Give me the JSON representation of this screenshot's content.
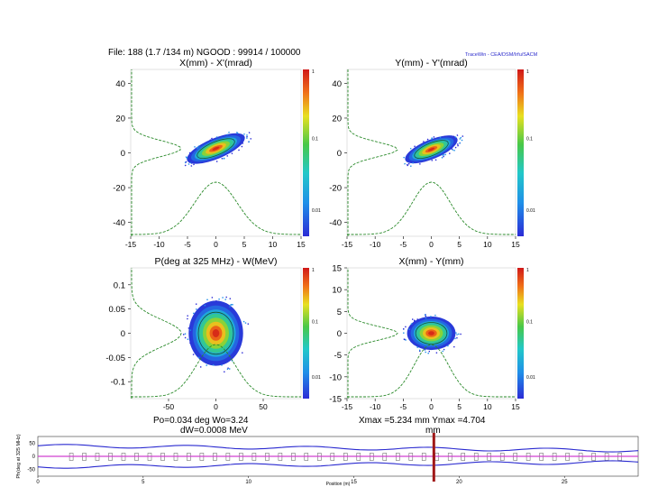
{
  "header": {
    "file_line": "File: 188 (1.7 /134 m)   NGOOD : 99914 / 100000",
    "tracewin_label": "TraceWin - CEA/DSM/Irfu/SACM"
  },
  "stats": {
    "phase_energy_line1": "Po=0.034 deg  Wo=3.24",
    "phase_energy_line2": "dW=0.0008 MeV",
    "xy_line1": "Xmax =5.234 mm  Ymax =4.704",
    "xy_line2": "mm"
  },
  "chart_data": [
    {
      "type": "scatter",
      "title": "X(mm) - X'(mrad)",
      "x_ticks": [
        -15,
        -10,
        -5,
        0,
        5,
        10,
        15
      ],
      "y_ticks": [
        40,
        20,
        0,
        -20,
        -40
      ],
      "xlim": [
        -15,
        15
      ],
      "ylim": [
        -48,
        48
      ],
      "colorbar_ticks": [
        "1",
        "0.1",
        "0.01"
      ],
      "density": {
        "cx": 0,
        "cy": 2.5,
        "sx": 2.2,
        "sy": 4.5,
        "corr": 0.75
      }
    },
    {
      "type": "scatter",
      "title": "Y(mm) - Y'(mrad)",
      "x_ticks": [
        -15,
        -10,
        -5,
        0,
        5,
        10,
        15
      ],
      "y_ticks": [
        40,
        20,
        0,
        -20,
        -40
      ],
      "xlim": [
        -15,
        15
      ],
      "ylim": [
        -48,
        48
      ],
      "colorbar_ticks": [
        "1",
        "0.1",
        "0.01"
      ],
      "density": {
        "cx": 0,
        "cy": 2,
        "sx": 2.0,
        "sy": 4.2,
        "corr": 0.72
      }
    },
    {
      "type": "scatter",
      "title": "P(deg at 325 MHz) - W(MeV)",
      "x_ticks": [
        -50,
        0,
        50
      ],
      "y_ticks": [
        0.1,
        0.05,
        0,
        -0.05,
        -0.1
      ],
      "xlim": [
        -90,
        90
      ],
      "ylim": [
        -0.135,
        0.135
      ],
      "colorbar_ticks": [
        "1",
        "0.1",
        "0.01"
      ],
      "density": {
        "cx": 0,
        "cy": 0,
        "sx": 12,
        "sy": 0.028,
        "corr": 0.0
      }
    },
    {
      "type": "scatter",
      "title": "X(mm) - Y(mm)",
      "x_ticks": [
        -15,
        -10,
        -5,
        0,
        5,
        10,
        15
      ],
      "y_ticks": [
        15,
        10,
        5,
        0,
        -5,
        -10,
        -15
      ],
      "xlim": [
        -15,
        15
      ],
      "ylim": [
        -15,
        15
      ],
      "colorbar_ticks": [
        "1",
        "0.1",
        "0.01"
      ],
      "density": {
        "cx": 0,
        "cy": 0,
        "sx": 1.8,
        "sy": 1.6,
        "corr": 0.0
      }
    },
    {
      "type": "line",
      "xlabel": "Position (m)",
      "ylabel": "Ph(deg at 325 MHz)",
      "x_ticks": [
        0,
        5,
        10,
        15,
        20,
        25
      ],
      "y_ticks": [
        50,
        0,
        -50
      ],
      "xlim": [
        0,
        28.5
      ],
      "ylim": [
        -75,
        75
      ],
      "marker_position": 18.8
    }
  ]
}
